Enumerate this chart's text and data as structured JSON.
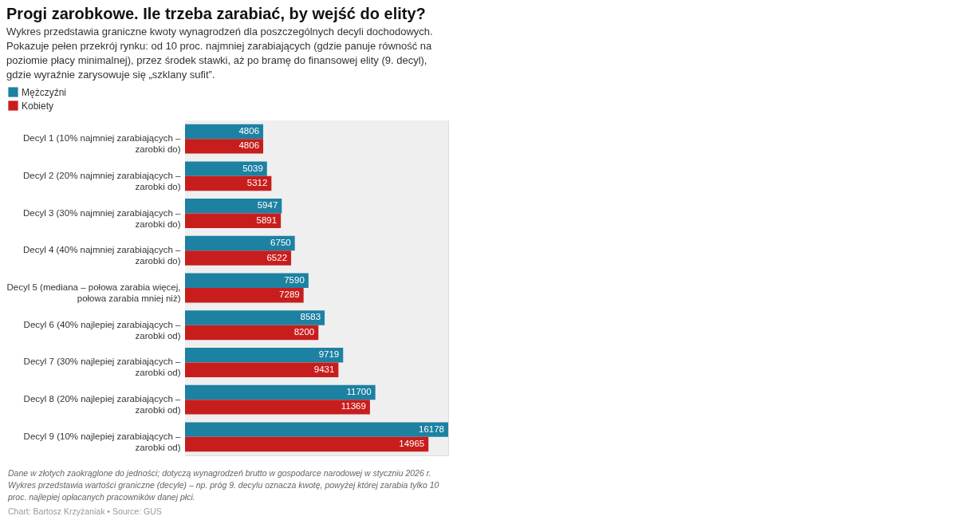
{
  "chart_data": {
    "type": "bar",
    "orientation": "horizontal",
    "title": "Progi zarobkowe. Ile trzeba zarabiać, by wejść do elity?",
    "subtitle": "Wykres przedstawia graniczne kwoty wynagrodzeń dla poszczególnych decyli dochodowych. Pokazuje pełen przekrój rynku: od 10 proc. najmniej zarabiających (gdzie panuje równość na poziomie płacy minimalnej), przez środek stawki, aż po bramę do finansowej elity (9. decyl), gdzie wyraźnie zarysowuje się „szklany sufit”.",
    "categories": [
      "Decyl 1 (10% najmniej zarabiających – zarobki do)",
      "Decyl 2 (20% najmniej zarabiających – zarobki do)",
      "Decyl 3 (30% najmniej zarabiających – zarobki do)",
      "Decyl 4 (40% najmniej zarabiających – zarobki do)",
      "Decyl 5 (mediana – połowa zarabia więcej, połowa zarabia mniej niż)",
      "Decyl 6 (40% najlepiej zarabiających – zarobki od)",
      "Decyl 7 (30% najlepiej zarabiających – zarobki od)",
      "Decyl 8 (20% najlepiej zarabiających – zarobki od)",
      "Decyl 9 (10% najlepiej zarabiających – zarobki od)"
    ],
    "series": [
      {
        "name": "Mężczyźni",
        "color": "#1d81a2",
        "values": [
          4806,
          5039,
          5947,
          6750,
          7590,
          8583,
          9719,
          11700,
          16178
        ]
      },
      {
        "name": "Kobiety",
        "color": "#c71e1d",
        "values": [
          4806,
          5312,
          5891,
          6522,
          7289,
          8200,
          9431,
          11369,
          14965
        ]
      }
    ],
    "data_labels": true,
    "bands": [
      {
        "axis": "x",
        "from": 0,
        "to": 16178,
        "color": "#efefef"
      }
    ],
    "legend": "top left",
    "tick_labels": "y",
    "annotations": [
      "Dane w złotych zaokrąglone do jedności; dotyczą wynagrodzeń brutto w gospodarce narodowej w styczniu 2026 r. Wykres przedstawia wartości graniczne (decyle) – np. próg 9. decylu oznacza kwotę, powyżej której zarabia tylko 10 proc. najlepiej opłacanych pracowników danej płci.",
      "Chart: Bartosz Krzyżaniak • Source: GUS"
    ]
  }
}
